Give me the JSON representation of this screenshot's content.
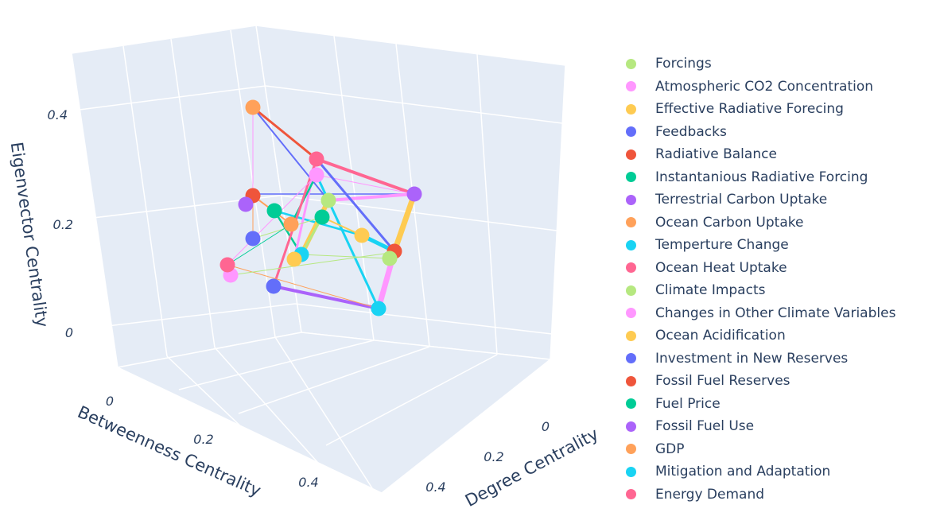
{
  "chart_data": {
    "type": "scatter3d",
    "title": "",
    "axes": {
      "x": {
        "label": "Betweenness Centrality",
        "ticks": [
          "0",
          "0.2",
          "0.4"
        ]
      },
      "y": {
        "label": "Degree Centrality",
        "ticks": [
          "0",
          "0.2",
          "0.4"
        ]
      },
      "z": {
        "label": "Eigenvector Centrality",
        "ticks": [
          "0",
          "0.2",
          "0.4"
        ]
      }
    },
    "legend_position": "right",
    "series": [
      {
        "name": "Forcings",
        "color": "#b6e880"
      },
      {
        "name": "Atmospheric CO2 Concentration",
        "color": "#ff97ff"
      },
      {
        "name": "Effective Radiative Forecing",
        "color": "#fecb52"
      },
      {
        "name": "Feedbacks",
        "color": "#636efa"
      },
      {
        "name": "Radiative Balance",
        "color": "#ef553b"
      },
      {
        "name": "Instantanious Radiative Forcing",
        "color": "#00cc96"
      },
      {
        "name": "Terrestrial Carbon Uptake",
        "color": "#ab63fa"
      },
      {
        "name": "Ocean Carbon Uptake",
        "color": "#ffa15a"
      },
      {
        "name": "Temperture Change",
        "color": "#19d3f3"
      },
      {
        "name": "Ocean Heat Uptake",
        "color": "#ff6692"
      },
      {
        "name": "Climate Impacts",
        "color": "#b6e880"
      },
      {
        "name": "Changes in Other Climate Variables",
        "color": "#ff97ff"
      },
      {
        "name": "Ocean Acidification",
        "color": "#fecb52"
      },
      {
        "name": "Investment in New Reserves",
        "color": "#636efa"
      },
      {
        "name": "Fossil Fuel Reserves",
        "color": "#ef553b"
      },
      {
        "name": "Fuel Price",
        "color": "#00cc96"
      },
      {
        "name": "Fossil Fuel Use",
        "color": "#ab63fa"
      },
      {
        "name": "GDP",
        "color": "#ffa15a"
      },
      {
        "name": "Mitigation and Adaptation",
        "color": "#19d3f3"
      },
      {
        "name": "Energy Demand",
        "color": "#ff6692"
      }
    ]
  }
}
